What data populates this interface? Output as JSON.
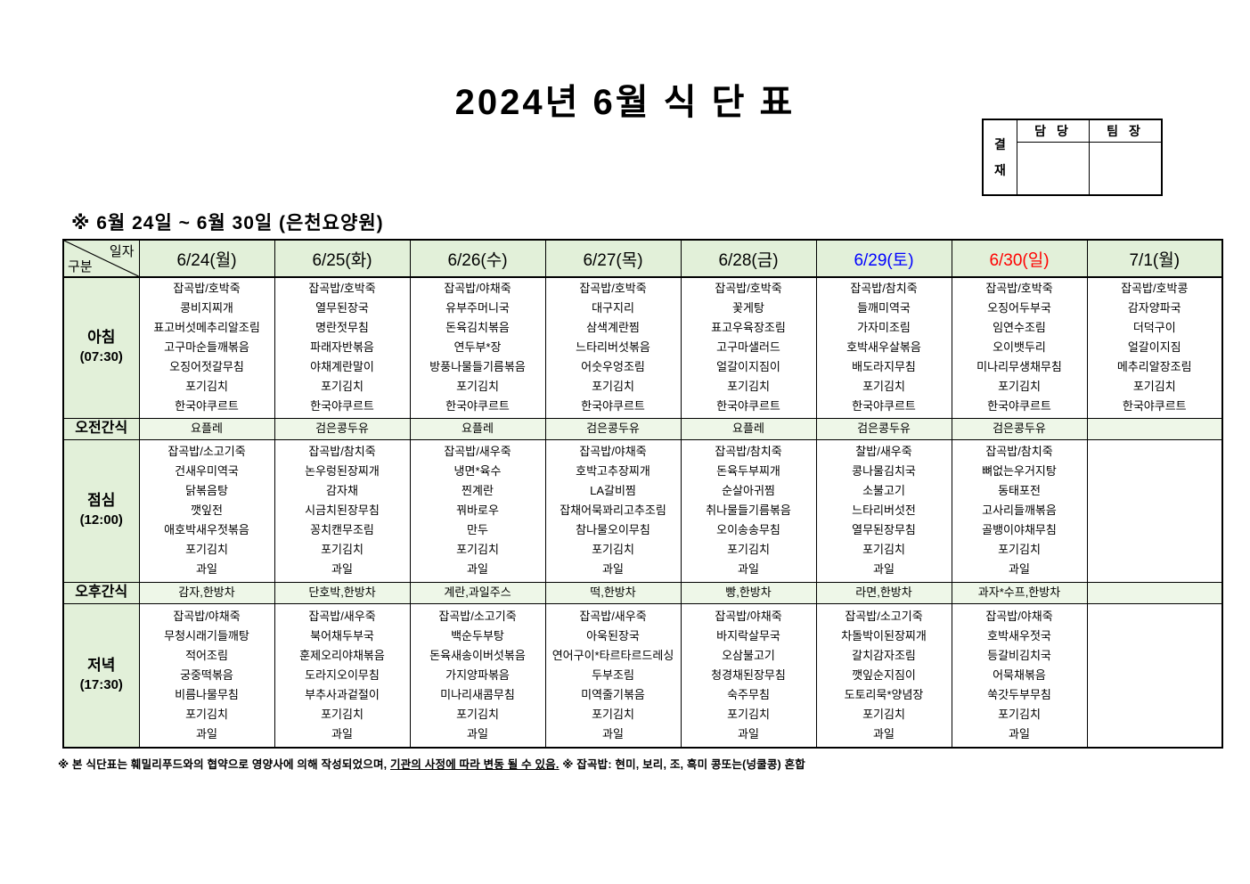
{
  "title": "2024년 6월 식 단 표",
  "approval": {
    "stamp_chars": [
      "결",
      "재"
    ],
    "columns": [
      "담 당",
      "팀 장"
    ]
  },
  "subtitle": "※ 6월 24일 ~ 6월 30일 (은천요양원)",
  "table": {
    "corner": {
      "top_label": "일자",
      "bottom_label": "구분"
    },
    "day_headers": [
      {
        "label": "6/24(월)",
        "color": "#000000"
      },
      {
        "label": "6/25(화)",
        "color": "#000000"
      },
      {
        "label": "6/26(수)",
        "color": "#000000"
      },
      {
        "label": "6/27(목)",
        "color": "#000000"
      },
      {
        "label": "6/28(금)",
        "color": "#000000"
      },
      {
        "label": "6/29(토)",
        "color": "#0000ff"
      },
      {
        "label": "6/30(일)",
        "color": "#ff0000"
      },
      {
        "label": "7/1(월)",
        "color": "#000000"
      }
    ],
    "rows": [
      {
        "key": "breakfast",
        "type": "meal",
        "label": "아침",
        "time": "(07:30)",
        "cells": [
          [
            "잡곡밥/호박죽",
            "콩비지찌개",
            "표고버섯메추리알조림",
            "고구마순들깨볶음",
            "오징어젓갈무침",
            "포기김치",
            "한국야쿠르트"
          ],
          [
            "잡곡밥/호박죽",
            "열무된장국",
            "명란젓무침",
            "파래자반볶음",
            "야채계란말이",
            "포기김치",
            "한국야쿠르트"
          ],
          [
            "잡곡밥/야채죽",
            "유부주머니국",
            "돈육김치볶음",
            "연두부*장",
            "방풍나물들기름볶음",
            "포기김치",
            "한국야쿠르트"
          ],
          [
            "잡곡밥/호박죽",
            "대구지리",
            "삼색계란찜",
            "느타리버섯볶음",
            "어숫우엉조림",
            "포기김치",
            "한국야쿠르트"
          ],
          [
            "잡곡밥/호박죽",
            "꽃게탕",
            "표고우육장조림",
            "고구마샐러드",
            "얼갈이지짐이",
            "포기김치",
            "한국야쿠르트"
          ],
          [
            "잡곡밥/참치죽",
            "들깨미역국",
            "가자미조림",
            "호박새우살볶음",
            "배도라지무침",
            "포기김치",
            "한국야쿠르트"
          ],
          [
            "잡곡밥/호박죽",
            "오징어두부국",
            "임연수조림",
            "오이뱃두리",
            "미나리무생채무침",
            "포기김치",
            "한국야쿠르트"
          ],
          [
            "잡곡밥/호박콩",
            "감자양파국",
            "더덕구이",
            "얼갈이지짐",
            "메추리알장조림",
            "포기김치",
            "한국야쿠르트"
          ]
        ]
      },
      {
        "key": "am-snack",
        "type": "snack",
        "label": "오전간식",
        "cells": [
          "요플레",
          "검은콩두유",
          "요플레",
          "검은콩두유",
          "요플레",
          "검은콩두유",
          "검은콩두유",
          ""
        ]
      },
      {
        "key": "lunch",
        "type": "meal",
        "label": "점심",
        "time": "(12:00)",
        "cells": [
          [
            "잡곡밥/소고기죽",
            "건새우미역국",
            "닭볶음탕",
            "깻잎전",
            "애호박새우젓볶음",
            "포기김치",
            "과일"
          ],
          [
            "잡곡밥/참치죽",
            "논우렁된장찌개",
            "감자채",
            "시금치된장무침",
            "꽁치캔무조림",
            "포기김치",
            "과일"
          ],
          [
            "잡곡밥/새우죽",
            "냉면*육수",
            "찐계란",
            "꿔바로우",
            "만두",
            "포기김치",
            "과일"
          ],
          [
            "잡곡밥/야채죽",
            "호박고추장찌개",
            "LA갈비찜",
            "잡채어묵꽈리고추조림",
            "참나물오이무침",
            "포기김치",
            "과일"
          ],
          [
            "잡곡밥/참치죽",
            "돈육두부찌개",
            "순살아귀찜",
            "취나물들기름볶음",
            "오이송송무침",
            "포기김치",
            "과일"
          ],
          [
            "찰밥/새우죽",
            "콩나물김치국",
            "소불고기",
            "느타리버섯전",
            "열무된장무침",
            "포기김치",
            "과일"
          ],
          [
            "잡곡밥/참치죽",
            "뼈없는우거지탕",
            "동태포전",
            "고사리들깨볶음",
            "골뱅이야채무침",
            "포기김치",
            "과일"
          ],
          []
        ]
      },
      {
        "key": "pm-snack",
        "type": "snack",
        "label": "오후간식",
        "cells": [
          "감자,한방차",
          "단호박,한방차",
          "계란,과일주스",
          "떡,한방차",
          "빵,한방차",
          "라면,한방차",
          "과자*수프,한방차",
          ""
        ]
      },
      {
        "key": "dinner",
        "type": "meal",
        "label": "저녁",
        "time": "(17:30)",
        "cells": [
          [
            "잡곡밥/야채죽",
            "무청시래기들깨탕",
            "적어조림",
            "궁중떡볶음",
            "비름나물무침",
            "포기김치",
            "과일"
          ],
          [
            "잡곡밥/새우죽",
            "북어채두부국",
            "훈제오리야채볶음",
            "도라지오이무침",
            "부추사과겉절이",
            "포기김치",
            "과일"
          ],
          [
            "잡곡밥/소고기죽",
            "백순두부탕",
            "돈육새송이버섯볶음",
            "가지양파볶음",
            "미나리새콤무침",
            "포기김치",
            "과일"
          ],
          [
            "잡곡밥/새우죽",
            "아욱된장국",
            "연어구이*타르타르드레싱",
            "두부조림",
            "미역줄기볶음",
            "포기김치",
            "과일"
          ],
          [
            "잡곡밥/야채죽",
            "바지락살무국",
            "오삼불고기",
            "청경채된장무침",
            "숙주무침",
            "포기김치",
            "과일"
          ],
          [
            "잡곡밥/소고기죽",
            "차돌박이된장찌개",
            "갈치감자조림",
            "깻잎순지짐이",
            "도토리묵*양념장",
            "포기김치",
            "과일"
          ],
          [
            "잡곡밥/야채죽",
            "호박새우젓국",
            "등갈비김치국",
            "어묵채볶음",
            "쑥갓두부무침",
            "포기김치",
            "과일"
          ],
          []
        ]
      }
    ]
  },
  "footnote": {
    "part1": "※ 본 식단표는 훼밀리푸드와의 협약으로 영양사에 의해 작성되었으며, ",
    "part2_underlined": "기관의 사정에 따라 변동 될 수 있음.",
    "part3": " ※ 잡곡밥: 현미, 보리, 조, 흑미 콩또는(넝쿨콩) 혼합"
  }
}
